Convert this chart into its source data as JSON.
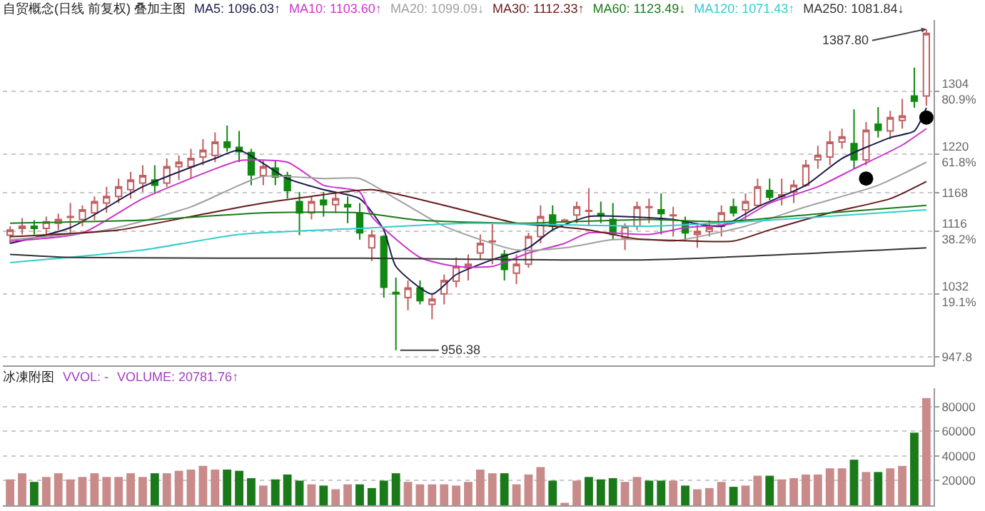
{
  "chart_data": [
    {
      "type": "candlestick",
      "title": "自贸概念(日线 前复权) 叠加主图",
      "categories": [
        null,
        null,
        null,
        null,
        null,
        null,
        null,
        null,
        null,
        null,
        null,
        null,
        null,
        null,
        null,
        null,
        null,
        null,
        null,
        null,
        null,
        null,
        null,
        null,
        null,
        null,
        null,
        null,
        null,
        null,
        null,
        null,
        null,
        null,
        null,
        null,
        null,
        null,
        null,
        null,
        null,
        null,
        null,
        null,
        null,
        null,
        null,
        null,
        null,
        null,
        null,
        null,
        null,
        null,
        null,
        null,
        null,
        null,
        null,
        null,
        null,
        null,
        null,
        null,
        null,
        null,
        null,
        null,
        null,
        null,
        null,
        null,
        null,
        null,
        null,
        null,
        null
      ],
      "ohlc": [
        [
          1111,
          1123,
          1100,
          1118
        ],
        [
          1120,
          1134,
          1112,
          1123
        ],
        [
          1123,
          1131,
          1112,
          1120
        ],
        [
          1120,
          1136,
          1109,
          1129
        ],
        [
          1127,
          1140,
          1118,
          1132
        ],
        [
          1135,
          1154,
          1114,
          1136
        ],
        [
          1132,
          1151,
          1123,
          1145
        ],
        [
          1141,
          1163,
          1131,
          1156
        ],
        [
          1154,
          1176,
          1141,
          1163
        ],
        [
          1163,
          1187,
          1154,
          1176
        ],
        [
          1172,
          1196,
          1160,
          1185
        ],
        [
          1181,
          1205,
          1169,
          1191
        ],
        [
          1185,
          1205,
          1167,
          1178
        ],
        [
          1181,
          1214,
          1176,
          1203
        ],
        [
          1203,
          1218,
          1185,
          1209
        ],
        [
          1203,
          1227,
          1187,
          1214
        ],
        [
          1216,
          1240,
          1205,
          1225
        ],
        [
          1218,
          1249,
          1209,
          1236
        ],
        [
          1236,
          1258,
          1223,
          1229
        ],
        [
          1229,
          1251,
          1209,
          1223
        ],
        [
          1222,
          1227,
          1178,
          1192
        ],
        [
          1191,
          1212,
          1178,
          1203
        ],
        [
          1201,
          1212,
          1178,
          1189
        ],
        [
          1191,
          1196,
          1160,
          1171
        ],
        [
          1156,
          1169,
          1111,
          1141
        ],
        [
          1141,
          1163,
          1132,
          1156
        ],
        [
          1158,
          1169,
          1136,
          1152
        ],
        [
          1152,
          1167,
          1141,
          1160
        ],
        [
          1152,
          1163,
          1127,
          1149
        ],
        [
          1141,
          1154,
          1105,
          1114
        ],
        [
          1094,
          1118,
          1076,
          1111
        ],
        [
          1109,
          1111,
          1027,
          1041
        ],
        [
          1034,
          1054,
          956.38,
          1032
        ],
        [
          1027,
          1050,
          1010,
          1040
        ],
        [
          1040,
          1050,
          1018,
          1023
        ],
        [
          1018,
          1032,
          998,
          1025
        ],
        [
          1032,
          1058,
          1018,
          1050
        ],
        [
          1049,
          1081,
          1041,
          1069
        ],
        [
          1067,
          1085,
          1050,
          1072
        ],
        [
          1087,
          1112,
          1078,
          1100
        ],
        [
          1102,
          1127,
          1072,
          1103
        ],
        [
          1085,
          1091,
          1050,
          1065
        ],
        [
          1060,
          1085,
          1045,
          1072
        ],
        [
          1072,
          1114,
          1067,
          1109
        ],
        [
          1109,
          1151,
          1100,
          1136
        ],
        [
          1138,
          1151,
          1118,
          1123
        ],
        [
          1130,
          1133,
          1128,
          1131
        ],
        [
          1138,
          1156,
          1127,
          1149
        ],
        [
          1143,
          1174,
          1123,
          1144
        ],
        [
          1140,
          1156,
          1127,
          1137
        ],
        [
          1132,
          1154,
          1105,
          1112
        ],
        [
          1107,
          1127,
          1091,
          1123
        ],
        [
          1123,
          1156,
          1118,
          1149
        ],
        [
          1148,
          1160,
          1127,
          1149
        ],
        [
          1145,
          1167,
          1112,
          1140
        ],
        [
          1137,
          1149,
          1109,
          1138
        ],
        [
          1129,
          1136,
          1103,
          1114
        ],
        [
          1112,
          1127,
          1094,
          1116
        ],
        [
          1116,
          1131,
          1109,
          1121
        ],
        [
          1123,
          1151,
          1109,
          1141
        ],
        [
          1149,
          1160,
          1136,
          1141
        ],
        [
          1145,
          1167,
          1132,
          1156
        ],
        [
          1151,
          1187,
          1149,
          1176
        ],
        [
          1171,
          1187,
          1158,
          1162
        ],
        [
          1163,
          1187,
          1151,
          1165
        ],
        [
          1169,
          1185,
          1154,
          1178
        ],
        [
          1178,
          1212,
          1176,
          1205
        ],
        [
          1212,
          1231,
          1200,
          1218
        ],
        [
          1216,
          1251,
          1205,
          1236
        ],
        [
          1236,
          1254,
          1227,
          1243
        ],
        [
          1234,
          1280,
          1200,
          1212
        ],
        [
          1212,
          1263,
          1205,
          1252
        ],
        [
          1260,
          1283,
          1242,
          1252
        ],
        [
          1251,
          1278,
          1240,
          1269
        ],
        [
          1265,
          1294,
          1254,
          1271
        ],
        [
          1298,
          1336,
          1282,
          1291
        ],
        [
          1298,
          1387.8,
          1285,
          1382
        ]
      ],
      "series": [
        {
          "type": "line",
          "name": "MA5: 1096.03↑",
          "color": "#1a1a4a",
          "values": [
            1100,
            null,
            null,
            null,
            null,
            1121,
            null,
            null,
            null,
            null,
            null,
            1176,
            null,
            null,
            null,
            null,
            null,
            1214,
            null,
            1225,
            null,
            null,
            null,
            1187,
            null,
            null,
            1172,
            null,
            null,
            1160,
            null,
            1118,
            1069,
            null,
            null,
            1032,
            null,
            1058,
            null,
            null,
            1078,
            null,
            null,
            1094,
            null,
            1118,
            null,
            null,
            1136,
            null,
            null,
            1136,
            null,
            null,
            null,
            1132,
            null,
            null,
            null,
            1123,
            null,
            null,
            1149,
            null,
            null,
            null,
            1178,
            null,
            null,
            1214,
            null,
            null,
            null,
            1242,
            null,
            1251,
            1282
          ]
        },
        {
          "type": "line",
          "name": "MA10: 1103.60↑",
          "color": "#cc33cc",
          "values": [
            1103,
            null,
            null,
            null,
            null,
            null,
            1114,
            null,
            null,
            null,
            null,
            1160,
            null,
            null,
            null,
            null,
            null,
            1200,
            null,
            1211,
            null,
            null,
            null,
            1209,
            null,
            null,
            1178,
            null,
            null,
            1169,
            1136,
            null,
            null,
            null,
            1081,
            null,
            null,
            1069,
            null,
            null,
            1069,
            null,
            null,
            1087,
            null,
            null,
            1100,
            null,
            1114,
            null,
            null,
            null,
            null,
            1112,
            null,
            null,
            1121,
            null,
            null,
            null,
            1127,
            null,
            null,
            1154,
            null,
            null,
            null,
            1176,
            null,
            null,
            1200,
            null,
            null,
            null,
            1232,
            null,
            1254
          ]
        },
        {
          "type": "line",
          "name": "MA20: 1099.09↓",
          "color": "#a0a0a0",
          "values": [
            1105,
            null,
            null,
            null,
            null,
            null,
            null,
            null,
            1118,
            null,
            null,
            null,
            null,
            null,
            null,
            1149,
            null,
            null,
            null,
            1178,
            null,
            1190,
            null,
            null,
            null,
            null,
            1187,
            null,
            null,
            1187,
            null,
            null,
            1160,
            null,
            null,
            null,
            1123,
            null,
            null,
            null,
            null,
            null,
            1091,
            null,
            null,
            null,
            1094,
            null,
            null,
            null,
            1105,
            null,
            null,
            1105,
            null,
            1103,
            null,
            null,
            null,
            null,
            null,
            1123,
            null,
            null,
            null,
            null,
            1149,
            null,
            null,
            null,
            null,
            null,
            1178,
            null,
            null,
            null,
            1209
          ]
        },
        {
          "type": "line",
          "name": "MA30: 1112.33↑",
          "color": "#661a1a",
          "values": [
            1109,
            null,
            null,
            null,
            null,
            null,
            null,
            null,
            null,
            1118,
            null,
            null,
            null,
            null,
            null,
            1136,
            null,
            null,
            null,
            null,
            null,
            1154,
            null,
            null,
            null,
            1163,
            null,
            null,
            null,
            null,
            1172,
            null,
            null,
            null,
            null,
            null,
            1151,
            null,
            null,
            null,
            null,
            null,
            1127,
            null,
            null,
            1123,
            null,
            null,
            1118,
            null,
            null,
            null,
            1106,
            null,
            null,
            1104,
            null,
            null,
            null,
            null,
            1103,
            null,
            null,
            1118,
            null,
            null,
            null,
            null,
            1141,
            null,
            null,
            null,
            null,
            1160,
            null,
            null,
            1183
          ]
        },
        {
          "type": "line",
          "name": "MA60: 1123.49↓",
          "color": "#1a7a1a",
          "values": [
            1127,
            null,
            null,
            null,
            null,
            null,
            null,
            null,
            null,
            null,
            null,
            1131,
            null,
            null,
            null,
            null,
            null,
            null,
            null,
            null,
            null,
            1141,
            null,
            null,
            null,
            null,
            null,
            null,
            null,
            1141,
            null,
            null,
            null,
            null,
            1131,
            null,
            null,
            null,
            null,
            null,
            null,
            null,
            1127,
            null,
            null,
            null,
            null,
            null,
            null,
            null,
            null,
            null,
            null,
            1132,
            null,
            null,
            null,
            null,
            null,
            1129,
            null,
            null,
            null,
            null,
            null,
            null,
            null,
            null,
            1141,
            null,
            null,
            null,
            null,
            null,
            null,
            null,
            1151
          ]
        },
        {
          "type": "line",
          "name": "MA120: 1071.43↑",
          "color": "#33cccc",
          "values": [
            1074,
            null,
            null,
            null,
            null,
            null,
            null,
            null,
            null,
            null,
            null,
            1091,
            null,
            null,
            null,
            null,
            null,
            null,
            null,
            1112,
            null,
            null,
            null,
            null,
            null,
            null,
            null,
            null,
            null,
            1120,
            null,
            null,
            null,
            null,
            null,
            null,
            null,
            null,
            1127,
            null,
            null,
            null,
            null,
            null,
            null,
            null,
            null,
            null,
            null,
            null,
            null,
            null,
            null,
            1123,
            null,
            null,
            null,
            null,
            null,
            null,
            null,
            null,
            null,
            1131,
            null,
            null,
            null,
            null,
            null,
            null,
            null,
            null,
            null,
            null,
            null,
            null,
            1145
          ]
        },
        {
          "type": "line",
          "name": "MA250: 1081.84↓",
          "color": "#333333",
          "values": [
            1085,
            null,
            null,
            null,
            null,
            1081,
            null,
            null,
            null,
            null,
            null,
            null,
            null,
            null,
            null,
            null,
            null,
            null,
            null,
            null,
            null,
            null,
            null,
            null,
            null,
            null,
            null,
            null,
            null,
            1080,
            null,
            null,
            null,
            null,
            null,
            null,
            null,
            null,
            null,
            null,
            null,
            null,
            null,
            null,
            null,
            null,
            null,
            null,
            null,
            null,
            null,
            null,
            null,
            1078,
            null,
            null,
            null,
            null,
            null,
            null,
            null,
            null,
            null,
            null,
            null,
            null,
            null,
            null,
            null,
            null,
            null,
            null,
            null,
            null,
            null,
            null,
            1094
          ]
        },
        {
          "type": "scatter",
          "color": "#000000",
          "values": [
            null,
            null,
            null,
            null,
            null,
            null,
            null,
            null,
            null,
            null,
            null,
            null,
            null,
            null,
            null,
            null,
            null,
            null,
            null,
            null,
            null,
            null,
            null,
            null,
            null,
            null,
            null,
            null,
            null,
            null,
            null,
            null,
            null,
            null,
            null,
            null,
            null,
            null,
            null,
            null,
            null,
            null,
            null,
            null,
            null,
            null,
            null,
            null,
            null,
            null,
            null,
            null,
            null,
            null,
            null,
            null,
            null,
            null,
            null,
            null,
            null,
            null,
            null,
            null,
            null,
            null,
            null,
            null,
            null,
            null,
            null,
            1187,
            null,
            null,
            null,
            null,
            1269
          ]
        }
      ],
      "ylim": [
        936,
        1400
      ],
      "yticks": [
        947.8,
        {
          "value": 1032,
          "label": "1032\n19.1%"
        },
        {
          "value": 1116,
          "label": "1116\n38.2%"
        },
        1168,
        {
          "value": 1220,
          "label": "1220\n61.8%"
        },
        {
          "value": 1304,
          "label": "1304\n80.9%"
        }
      ],
      "grid": "y",
      "legend": "top",
      "tick_labels": "y",
      "annotations": [
        "1387.80",
        "956.38"
      ]
    },
    {
      "type": "bar",
      "title": "冰凍附图",
      "categories": [
        null,
        null,
        null,
        null,
        null,
        null,
        null,
        null,
        null,
        null,
        null,
        null,
        null,
        null,
        null,
        null,
        null,
        null,
        null,
        null,
        null,
        null,
        null,
        null,
        null,
        null,
        null,
        null,
        null,
        null,
        null,
        null,
        null,
        null,
        null,
        null,
        null,
        null,
        null,
        null,
        null,
        null,
        null,
        null,
        null,
        null,
        null,
        null,
        null,
        null,
        null,
        null,
        null,
        null,
        null,
        null,
        null,
        null,
        null,
        null,
        null,
        null,
        null,
        null,
        null,
        null,
        null,
        null,
        null,
        null,
        null,
        null,
        null,
        null,
        null,
        null,
        null
      ],
      "values": [
        21000,
        26000,
        19000,
        23000,
        26000,
        21000,
        23000,
        26000,
        23000,
        23000,
        26000,
        23000,
        26000,
        26000,
        28000,
        29000,
        32000,
        29000,
        29000,
        28000,
        22000,
        16000,
        21000,
        25000,
        20000,
        17000,
        16000,
        13000,
        17000,
        17000,
        14000,
        20000,
        26000,
        19000,
        17000,
        17000,
        17000,
        16000,
        19000,
        29000,
        26000,
        26000,
        17000,
        25000,
        31000,
        20000,
        2000,
        20000,
        23000,
        21000,
        22000,
        19000,
        23000,
        20000,
        20000,
        20000,
        16000,
        13000,
        14000,
        19000,
        15000,
        16000,
        24000,
        24000,
        21000,
        22000,
        25000,
        25000,
        30000,
        30000,
        37000,
        27000,
        27000,
        30000,
        32000,
        59000,
        87000
      ],
      "colors": [
        "#c98a8a",
        "#c98a8a",
        "#1a7a1a",
        "#c98a8a",
        "#c98a8a",
        "#c98a8a",
        "#c98a8a",
        "#c98a8a",
        "#c98a8a",
        "#c98a8a",
        "#c98a8a",
        "#c98a8a",
        "#1a7a1a",
        "#c98a8a",
        "#c98a8a",
        "#c98a8a",
        "#c98a8a",
        "#c98a8a",
        "#1a7a1a",
        "#1a7a1a",
        "#1a7a1a",
        "#c98a8a",
        "#1a7a1a",
        "#1a7a1a",
        "#1a7a1a",
        "#c98a8a",
        "#1a7a1a",
        "#c98a8a",
        "#c98a8a",
        "#1a7a1a",
        "#1a7a1a",
        "#1a7a1a",
        "#1a7a1a",
        "#c98a8a",
        "#c98a8a",
        "#c98a8a",
        "#c98a8a",
        "#c98a8a",
        "#c98a8a",
        "#c98a8a",
        "#c98a8a",
        "#1a7a1a",
        "#c98a8a",
        "#c98a8a",
        "#c98a8a",
        "#1a7a1a",
        "#c98a8a",
        "#c98a8a",
        "#1a7a1a",
        "#1a7a1a",
        "#1a7a1a",
        "#c98a8a",
        "#c98a8a",
        "#1a7a1a",
        "#1a7a1a",
        "#c98a8a",
        "#1a7a1a",
        "#c98a8a",
        "#c98a8a",
        "#c98a8a",
        "#1a7a1a",
        "#c98a8a",
        "#c98a8a",
        "#1a7a1a",
        "#c98a8a",
        "#c98a8a",
        "#c98a8a",
        "#c98a8a",
        "#c98a8a",
        "#c98a8a",
        "#1a7a1a",
        "#c98a8a",
        "#1a7a1a",
        "#c98a8a",
        "#c98a8a",
        "#1a7a1a",
        "#c98a8a"
      ],
      "ylim": [
        0,
        95000
      ],
      "yticks": [
        20000,
        40000,
        60000,
        80000
      ],
      "grid": "y",
      "tick_labels": "y",
      "annotations": [
        "VVOL: -",
        "VOLUME: 20781.76↑"
      ]
    }
  ]
}
